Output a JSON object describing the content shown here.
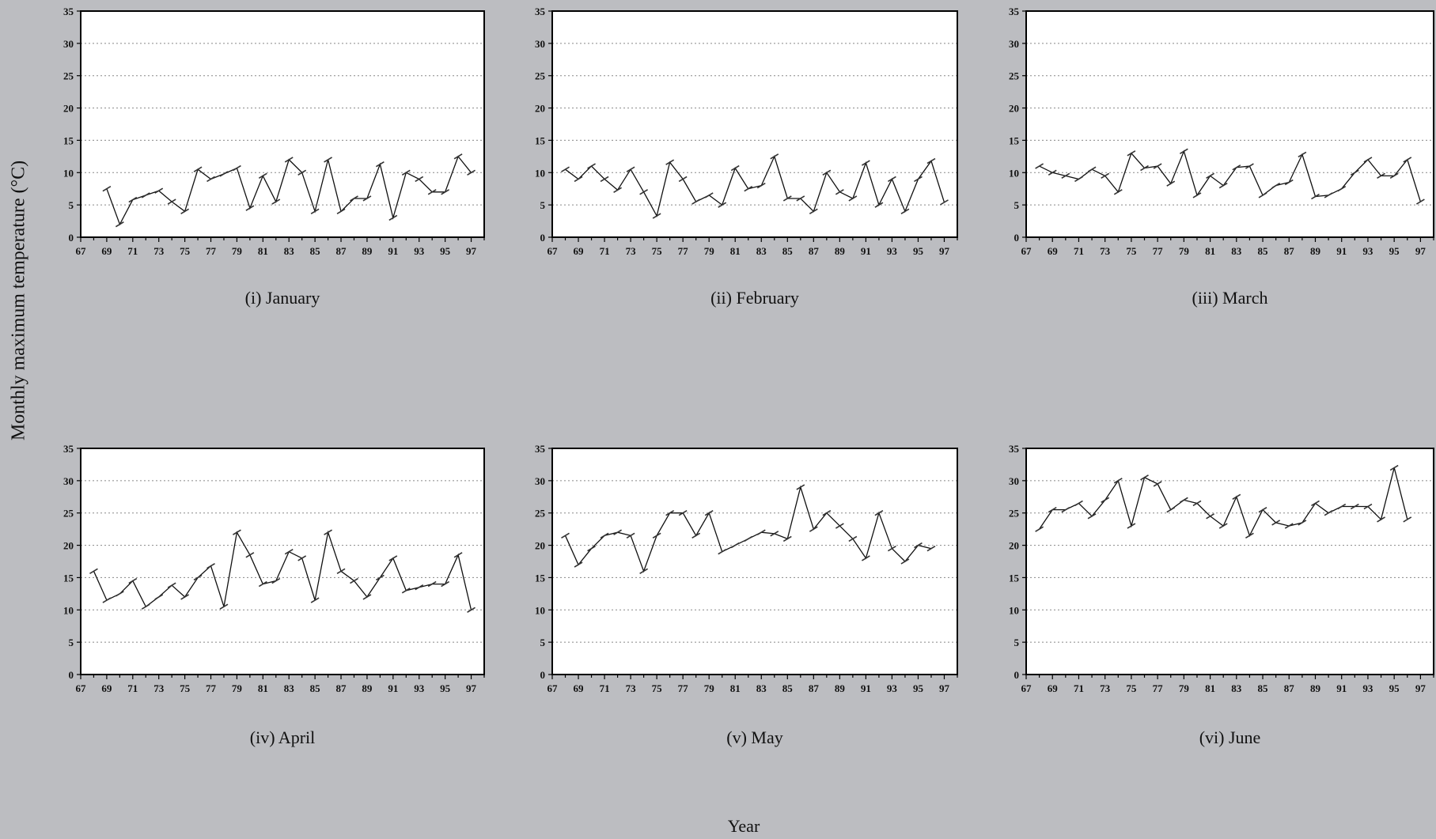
{
  "figure": {
    "ylabel": "Monthly maximum temperature (°C)",
    "xlabel": "Year"
  },
  "chart_data": [
    {
      "type": "line",
      "caption": "(i) January",
      "x_ticks": [
        "67",
        "69",
        "71",
        "73",
        "75",
        "77",
        "79",
        "81",
        "83",
        "85",
        "87",
        "89",
        "91",
        "93",
        "95",
        "97"
      ],
      "y_ticks": [
        0,
        5,
        10,
        15,
        20,
        25,
        30,
        35
      ],
      "xlim": [
        67,
        98
      ],
      "ylim": [
        0,
        35
      ],
      "grid": "horizontal-dotted",
      "x": [
        69,
        70,
        71,
        72,
        73,
        74,
        75,
        76,
        77,
        78,
        79,
        80,
        81,
        82,
        83,
        84,
        85,
        86,
        87,
        88,
        89,
        90,
        91,
        92,
        93,
        94,
        95,
        96,
        97
      ],
      "values": [
        7.5,
        2,
        5.8,
        6.5,
        7.2,
        5.5,
        4,
        10.5,
        9,
        9.8,
        10.7,
        4.5,
        9.5,
        5.5,
        12,
        10,
        4,
        12,
        4,
        6,
        6,
        11.3,
        3,
        10,
        9,
        7,
        7,
        12.5,
        10
      ]
    },
    {
      "type": "line",
      "caption": "(ii) February",
      "x_ticks": [
        "67",
        "69",
        "71",
        "73",
        "75",
        "77",
        "79",
        "81",
        "83",
        "85",
        "87",
        "89",
        "91",
        "93",
        "95",
        "97"
      ],
      "y_ticks": [
        0,
        5,
        10,
        15,
        20,
        25,
        30,
        35
      ],
      "xlim": [
        67,
        98
      ],
      "ylim": [
        0,
        35
      ],
      "grid": "horizontal-dotted",
      "x": [
        68,
        69,
        70,
        71,
        72,
        73,
        74,
        75,
        76,
        77,
        78,
        79,
        80,
        81,
        82,
        83,
        84,
        85,
        86,
        87,
        88,
        89,
        90,
        91,
        92,
        93,
        94,
        95,
        96,
        97
      ],
      "values": [
        10.5,
        9,
        11,
        9,
        7.3,
        10.5,
        7,
        3.3,
        11.6,
        9,
        5.5,
        6.5,
        5,
        10.7,
        7.5,
        8,
        12.5,
        6,
        6,
        4,
        10,
        7,
        6,
        11.5,
        5,
        9,
        4,
        9,
        11.8,
        5.4
      ]
    },
    {
      "type": "line",
      "caption": "(iii) March",
      "x_ticks": [
        "67",
        "69",
        "71",
        "73",
        "75",
        "77",
        "79",
        "81",
        "83",
        "85",
        "87",
        "89",
        "91",
        "93",
        "95",
        "97"
      ],
      "y_ticks": [
        0,
        5,
        10,
        15,
        20,
        25,
        30,
        35
      ],
      "xlim": [
        67,
        98
      ],
      "ylim": [
        0,
        35
      ],
      "grid": "horizontal-dotted",
      "x": [
        68,
        69,
        70,
        71,
        72,
        73,
        74,
        75,
        76,
        77,
        78,
        79,
        80,
        81,
        82,
        83,
        84,
        85,
        86,
        87,
        88,
        89,
        90,
        91,
        92,
        93,
        94,
        95,
        96,
        97
      ],
      "values": [
        11,
        10,
        9.5,
        9,
        10.5,
        9.5,
        7,
        13,
        10.7,
        11,
        8.3,
        13.3,
        6.5,
        9.5,
        8,
        10.8,
        11,
        6.5,
        8,
        8.5,
        12.8,
        6.3,
        6.5,
        7.5,
        10,
        12,
        9.5,
        9.5,
        12,
        5.5
      ]
    },
    {
      "type": "line",
      "caption": "(iv) April",
      "x_ticks": [
        "67",
        "69",
        "71",
        "73",
        "75",
        "77",
        "79",
        "81",
        "83",
        "85",
        "87",
        "89",
        "91",
        "93",
        "95",
        "97"
      ],
      "y_ticks": [
        0,
        5,
        10,
        15,
        20,
        25,
        30,
        35
      ],
      "xlim": [
        67,
        98
      ],
      "ylim": [
        0,
        35
      ],
      "grid": "horizontal-dotted",
      "x": [
        68,
        69,
        70,
        71,
        72,
        73,
        74,
        75,
        76,
        77,
        78,
        79,
        80,
        81,
        82,
        83,
        84,
        85,
        86,
        87,
        88,
        89,
        90,
        91,
        92,
        93,
        94,
        95,
        96,
        97
      ],
      "values": [
        16,
        11.5,
        12.5,
        14.5,
        10.5,
        12,
        13.8,
        12,
        15,
        16.8,
        10.5,
        22,
        18.5,
        14,
        14.5,
        19,
        18,
        11.5,
        22,
        16,
        14.5,
        12,
        15,
        18,
        13,
        13.5,
        14,
        14,
        18.5,
        10
      ]
    },
    {
      "type": "line",
      "caption": "(v) May",
      "x_ticks": [
        "67",
        "69",
        "71",
        "73",
        "75",
        "77",
        "79",
        "81",
        "83",
        "85",
        "87",
        "89",
        "91",
        "93",
        "95",
        "97"
      ],
      "y_ticks": [
        0,
        5,
        10,
        15,
        20,
        25,
        30,
        35
      ],
      "xlim": [
        67,
        98
      ],
      "ylim": [
        0,
        35
      ],
      "grid": "horizontal-dotted",
      "x": [
        68,
        69,
        70,
        71,
        72,
        73,
        74,
        75,
        76,
        77,
        78,
        79,
        80,
        81,
        82,
        83,
        84,
        85,
        86,
        87,
        88,
        89,
        90,
        91,
        92,
        93,
        94,
        95,
        96
      ],
      "values": [
        21.5,
        17,
        19.5,
        21.5,
        22,
        21.5,
        16,
        21.5,
        25,
        25,
        21.5,
        25,
        19,
        20,
        21,
        22,
        21.8,
        21,
        29,
        22.5,
        25,
        23,
        21,
        18,
        25,
        19.5,
        17.5,
        20,
        19.5
      ]
    },
    {
      "type": "line",
      "caption": "(vi) June",
      "x_ticks": [
        "67",
        "69",
        "71",
        "73",
        "75",
        "77",
        "79",
        "81",
        "83",
        "85",
        "87",
        "89",
        "91",
        "93",
        "95",
        "97"
      ],
      "y_ticks": [
        0,
        5,
        10,
        15,
        20,
        25,
        30,
        35
      ],
      "xlim": [
        67,
        98
      ],
      "ylim": [
        0,
        35
      ],
      "grid": "horizontal-dotted",
      "x": [
        68,
        69,
        70,
        71,
        72,
        73,
        74,
        75,
        76,
        77,
        78,
        79,
        80,
        81,
        82,
        83,
        84,
        85,
        86,
        87,
        88,
        89,
        90,
        91,
        92,
        93,
        94,
        95,
        96
      ],
      "values": [
        22.5,
        25.5,
        25.5,
        26.5,
        24.5,
        27,
        30,
        23,
        30.5,
        29.5,
        25.5,
        27,
        26.5,
        24.5,
        23,
        27.5,
        21.5,
        25.5,
        23.5,
        23,
        23.5,
        26.5,
        25,
        26,
        26,
        26,
        24,
        32,
        24
      ]
    }
  ]
}
